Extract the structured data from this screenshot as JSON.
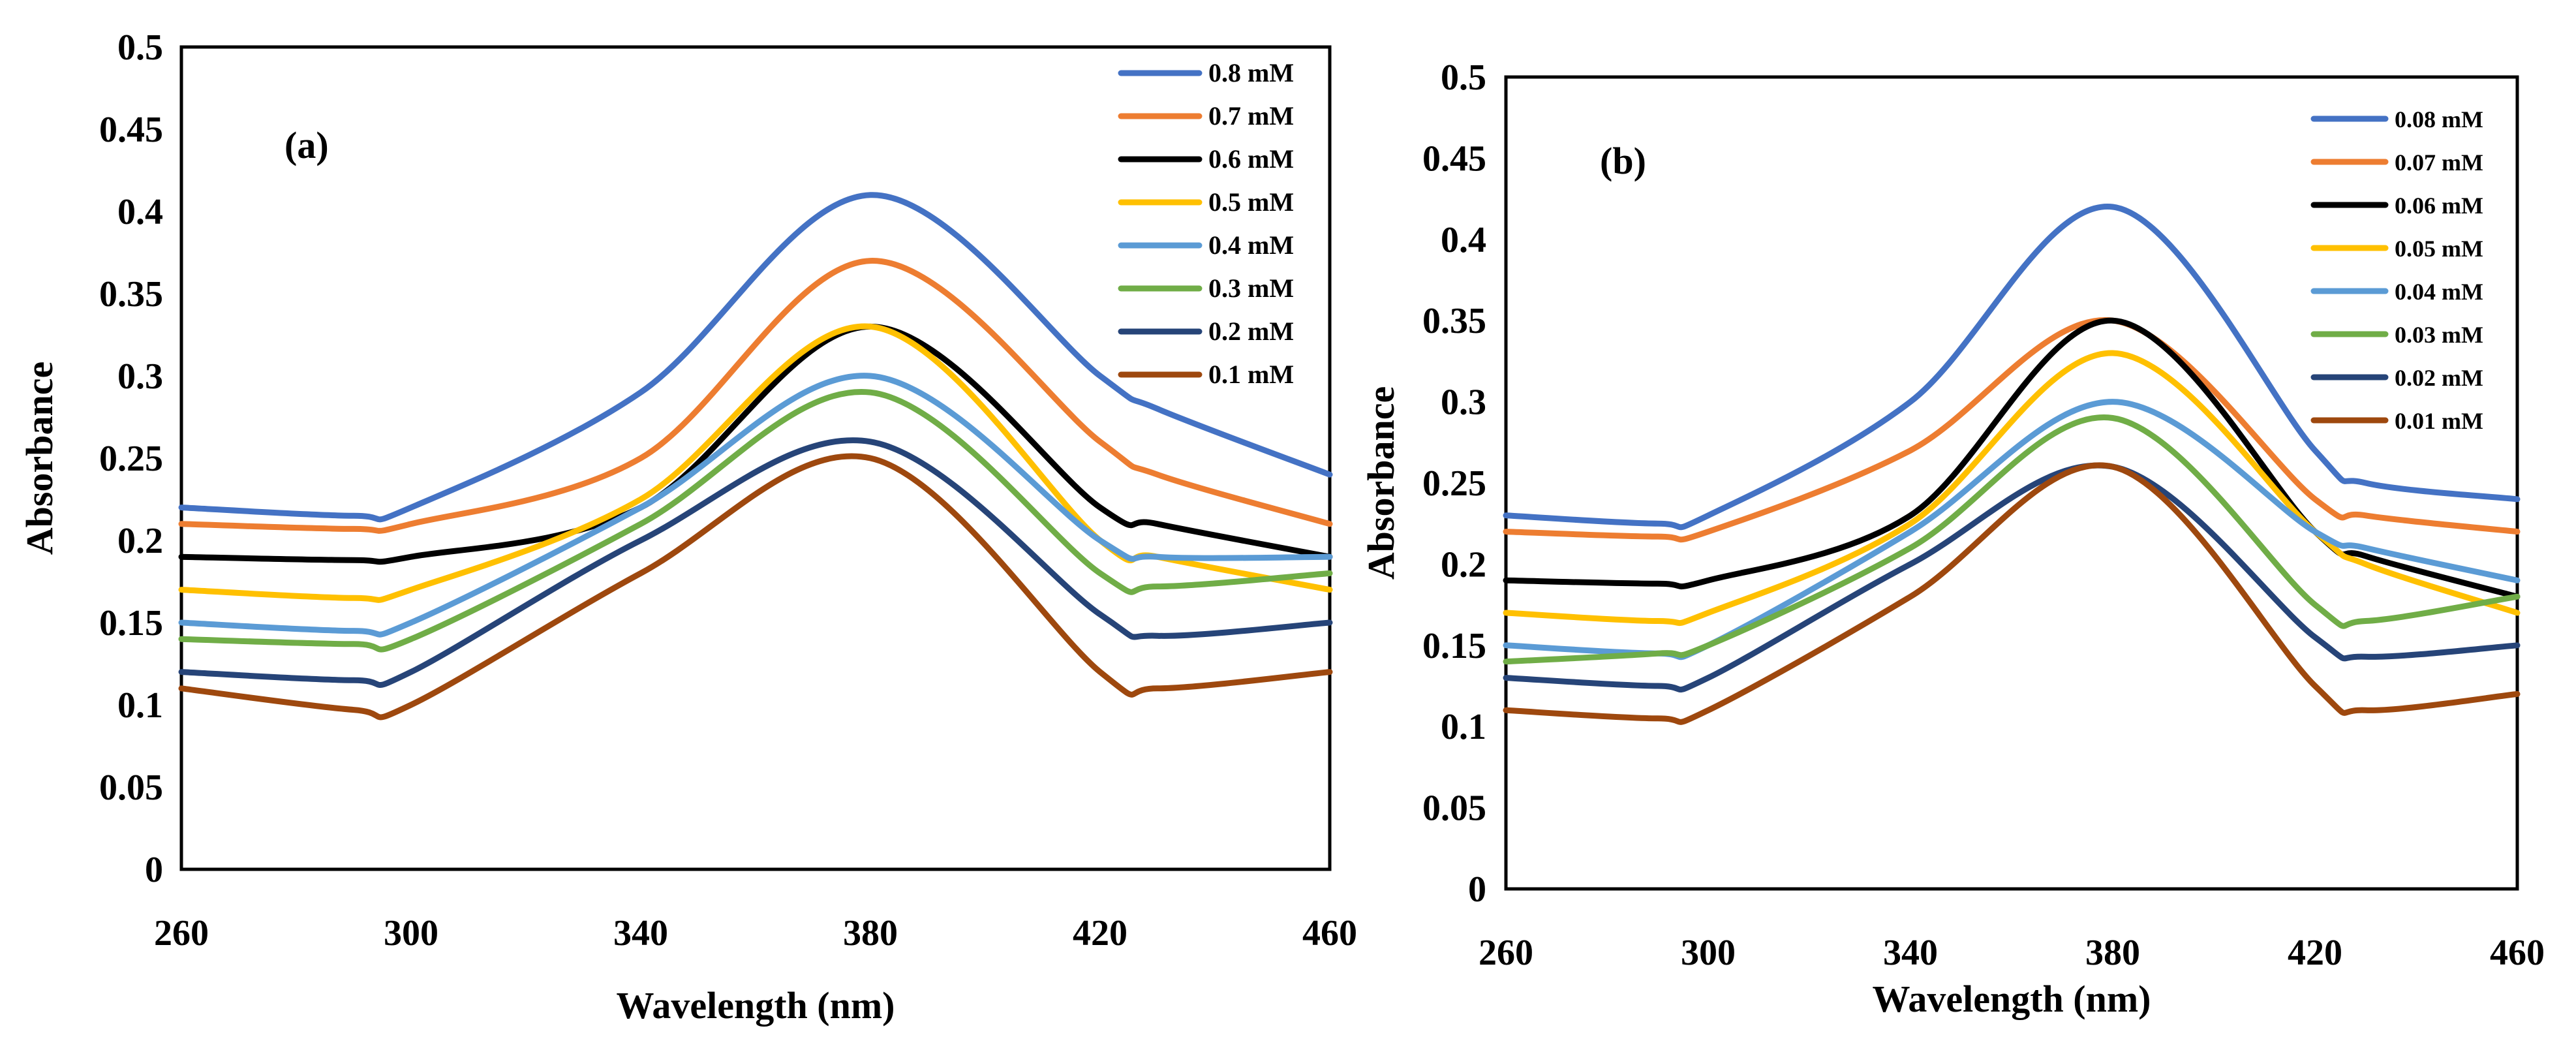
{
  "figure": {
    "panels": [
      {
        "id": "a",
        "label": "(a)"
      },
      {
        "id": "b",
        "label": "(b)"
      }
    ]
  },
  "chart_data": [
    {
      "type": "line",
      "panel_label": "(a)",
      "xlabel": "Wavelength (nm)",
      "ylabel": "Absorbance",
      "xlim": [
        260,
        460
      ],
      "ylim": [
        0,
        0.5
      ],
      "xticks": [
        "260",
        "300",
        "340",
        "380",
        "420",
        "460"
      ],
      "yticks": [
        "0",
        "0.05",
        "0.1",
        "0.15",
        "0.2",
        "0.25",
        "0.3",
        "0.35",
        "0.4",
        "0.45",
        "0.5"
      ],
      "legend_position": "top-right",
      "x": [
        260,
        290,
        300,
        340,
        380,
        420,
        430,
        460
      ],
      "series": [
        {
          "name": "0.8 mM",
          "color": "#4472C4",
          "values": [
            0.22,
            0.215,
            0.22,
            0.29,
            0.41,
            0.3,
            0.28,
            0.24
          ]
        },
        {
          "name": "0.7 mM",
          "color": "#ED7D31",
          "values": [
            0.21,
            0.207,
            0.21,
            0.25,
            0.37,
            0.26,
            0.24,
            0.21
          ]
        },
        {
          "name": "0.6 mM",
          "color": "#000000",
          "values": [
            0.19,
            0.188,
            0.19,
            0.22,
            0.33,
            0.22,
            0.21,
            0.19
          ]
        },
        {
          "name": "0.5 mM",
          "color": "#FFC000",
          "values": [
            0.17,
            0.165,
            0.17,
            0.225,
            0.33,
            0.2,
            0.19,
            0.17
          ]
        },
        {
          "name": "0.4 mM",
          "color": "#5B9BD5",
          "values": [
            0.15,
            0.145,
            0.15,
            0.22,
            0.3,
            0.2,
            0.19,
            0.19
          ]
        },
        {
          "name": "0.3 mM",
          "color": "#70AD47",
          "values": [
            0.14,
            0.137,
            0.14,
            0.21,
            0.29,
            0.18,
            0.172,
            0.18
          ]
        },
        {
          "name": "0.2 mM",
          "color": "#264478",
          "values": [
            0.12,
            0.115,
            0.12,
            0.2,
            0.26,
            0.155,
            0.142,
            0.15
          ]
        },
        {
          "name": "0.1 mM",
          "color": "#9E480E",
          "values": [
            0.11,
            0.097,
            0.1,
            0.18,
            0.25,
            0.12,
            0.11,
            0.12
          ]
        }
      ]
    },
    {
      "type": "line",
      "panel_label": "(b)",
      "xlabel": "Wavelength (nm)",
      "ylabel": "Absorbance",
      "xlim": [
        260,
        460
      ],
      "ylim": [
        0,
        0.5
      ],
      "xticks": [
        "260",
        "300",
        "340",
        "380",
        "420",
        "460"
      ],
      "yticks": [
        "0",
        "0.05",
        "0.1",
        "0.15",
        "0.2",
        "0.25",
        "0.3",
        "0.35",
        "0.4",
        "0.45",
        "0.5"
      ],
      "legend_position": "top-right",
      "x": [
        260,
        290,
        300,
        340,
        380,
        420,
        430,
        460
      ],
      "series": [
        {
          "name": "0.08 mM",
          "color": "#4472C4",
          "values": [
            0.23,
            0.225,
            0.23,
            0.3,
            0.42,
            0.27,
            0.25,
            0.24
          ]
        },
        {
          "name": "0.07 mM",
          "color": "#ED7D31",
          "values": [
            0.22,
            0.217,
            0.22,
            0.27,
            0.35,
            0.24,
            0.23,
            0.22
          ]
        },
        {
          "name": "0.06 mM",
          "color": "#000000",
          "values": [
            0.19,
            0.188,
            0.19,
            0.23,
            0.35,
            0.22,
            0.205,
            0.18
          ]
        },
        {
          "name": "0.05 mM",
          "color": "#FFC000",
          "values": [
            0.17,
            0.165,
            0.17,
            0.225,
            0.33,
            0.22,
            0.2,
            0.17
          ]
        },
        {
          "name": "0.04 mM",
          "color": "#5B9BD5",
          "values": [
            0.15,
            0.145,
            0.15,
            0.22,
            0.3,
            0.22,
            0.21,
            0.19
          ]
        },
        {
          "name": "0.03 mM",
          "color": "#70AD47",
          "values": [
            0.14,
            0.145,
            0.15,
            0.21,
            0.29,
            0.175,
            0.165,
            0.18
          ]
        },
        {
          "name": "0.02 mM",
          "color": "#264478",
          "values": [
            0.13,
            0.125,
            0.13,
            0.2,
            0.26,
            0.155,
            0.143,
            0.15
          ]
        },
        {
          "name": "0.01 mM",
          "color": "#9E480E",
          "values": [
            0.11,
            0.105,
            0.11,
            0.18,
            0.26,
            0.125,
            0.11,
            0.12
          ]
        }
      ]
    }
  ]
}
